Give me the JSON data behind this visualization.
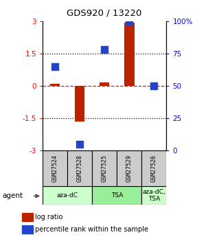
{
  "title": "GDS920 / 13220",
  "samples": [
    "GSM27524",
    "GSM27528",
    "GSM27525",
    "GSM27529",
    "GSM27526"
  ],
  "log_ratio": [
    0.1,
    -1.65,
    0.15,
    2.95,
    0.0
  ],
  "percentile_rank_scaled": [
    0.9,
    -2.7,
    1.7,
    3.0,
    0.0
  ],
  "agents": [
    {
      "label": "aza-dC",
      "start": 0,
      "end": 2,
      "color": "#ccffcc"
    },
    {
      "label": "TSA",
      "start": 2,
      "end": 4,
      "color": "#99ee99"
    },
    {
      "label": "aza-dC,\nTSA",
      "start": 4,
      "end": 5,
      "color": "#ccffcc"
    }
  ],
  "ylim": [
    -3,
    3
  ],
  "yticks_left": [
    -3,
    -1.5,
    0,
    1.5,
    3
  ],
  "ytick_labels_left": [
    "-3",
    "-1.5",
    "0",
    "1.5",
    "3"
  ],
  "ytick_labels_right": [
    "0",
    "25",
    "50",
    "75",
    "100%"
  ],
  "hlines_dotted": [
    -1.5,
    1.5
  ],
  "hline_dashed": 0,
  "bar_color": "#bb2200",
  "dot_color": "#2244cc",
  "background_color": "#ffffff",
  "legend_red_label": "log ratio",
  "legend_blue_label": "percentile rank within the sample",
  "bar_width": 0.4,
  "dot_size": 45,
  "agent_label_color": "#333333",
  "gray_box_color": "#cccccc"
}
